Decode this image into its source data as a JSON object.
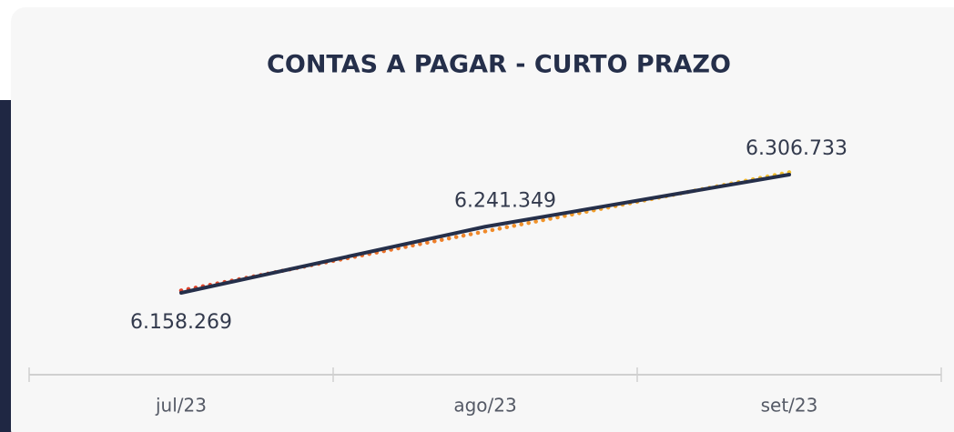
{
  "chart_data": {
    "type": "line",
    "title": "CONTAS A PAGAR - CURTO PRAZO",
    "categories": [
      "jul/23",
      "ago/23",
      "set/23"
    ],
    "series": [
      {
        "name": "CONTAS A PAGAR - CURTO PRAZO",
        "color": "#252f4a",
        "values": [
          6158269,
          6241349,
          6306733
        ],
        "value_labels": [
          "6.158.269",
          "6.241.349",
          "6.306.733"
        ]
      }
    ]
  }
}
